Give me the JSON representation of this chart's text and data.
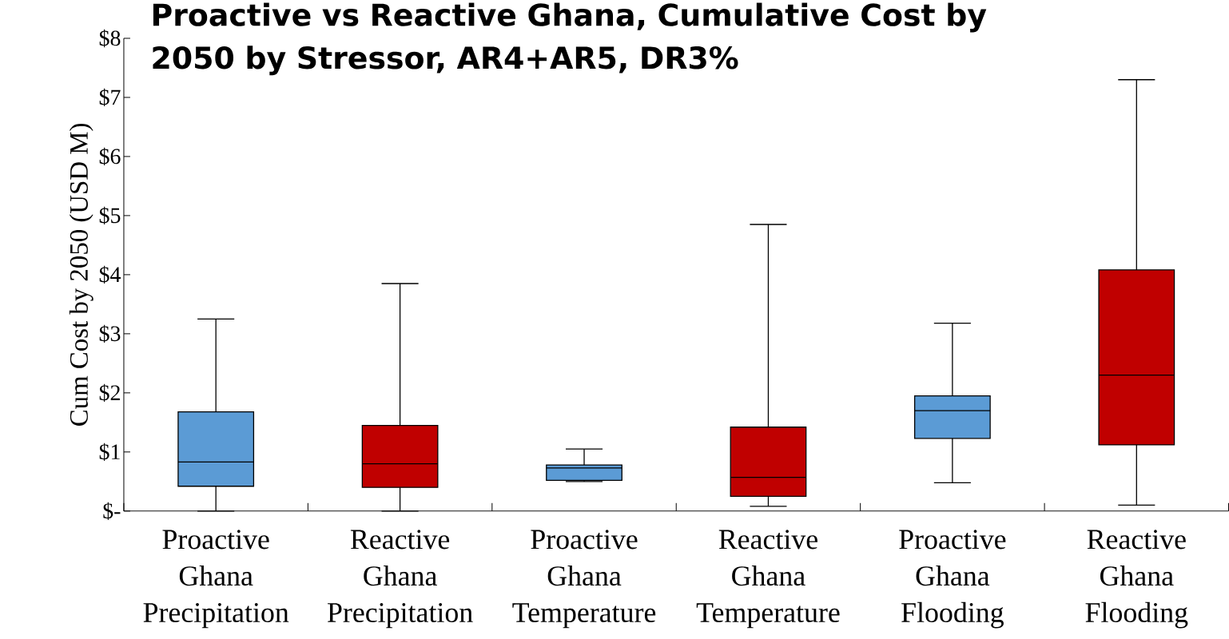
{
  "chart_data": {
    "type": "box",
    "title": "Proactive vs Reactive Ghana,  Cumulative Cost by 2050 by Stressor, AR4+AR5,  DR3%",
    "ylabel": "Cum Cost by 2050 (USD M)",
    "categories": [
      "Proactive Ghana Precipitation",
      "Reactive Ghana Precipitation",
      "Proactive Ghana Temperature",
      "Reactive Ghana Temperature",
      "Proactive Ghana Flooding",
      "Reactive Ghana Flooding"
    ],
    "colors": [
      "#5b9bd5",
      "#c00000",
      "#5b9bd5",
      "#c00000",
      "#5b9bd5",
      "#c00000"
    ],
    "boxes": [
      {
        "low": 0,
        "q1": 0.42,
        "median": 0.83,
        "q3": 1.68,
        "high": 3.25
      },
      {
        "low": 0,
        "q1": 0.4,
        "median": 0.8,
        "q3": 1.45,
        "high": 3.85
      },
      {
        "low": 0.5,
        "q1": 0.52,
        "median": 0.73,
        "q3": 0.78,
        "high": 1.05
      },
      {
        "low": 0.08,
        "q1": 0.25,
        "median": 0.57,
        "q3": 1.42,
        "high": 4.85
      },
      {
        "low": 0.48,
        "q1": 1.23,
        "median": 1.7,
        "q3": 1.95,
        "high": 3.18
      },
      {
        "low": 0.1,
        "q1": 1.12,
        "median": 2.3,
        "q3": 4.08,
        "high": 7.3
      }
    ],
    "ylim": [
      0,
      8
    ],
    "yticks": [
      {
        "value": 0,
        "label": "$-"
      },
      {
        "value": 1,
        "label": "$1"
      },
      {
        "value": 2,
        "label": "$2"
      },
      {
        "value": 3,
        "label": "$3"
      },
      {
        "value": 4,
        "label": "$4"
      },
      {
        "value": 5,
        "label": "$5"
      },
      {
        "value": 6,
        "label": "$6"
      },
      {
        "value": 7,
        "label": "$7"
      },
      {
        "value": 8,
        "label": "$8"
      }
    ]
  }
}
